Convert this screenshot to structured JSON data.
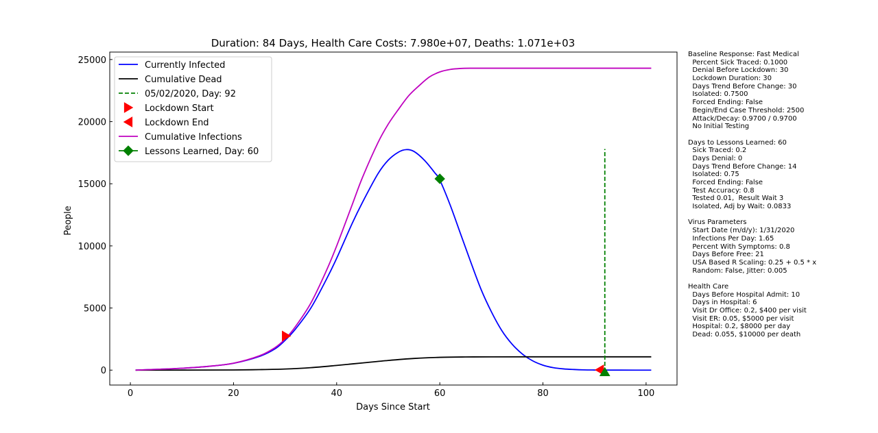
{
  "chart_data": {
    "type": "line",
    "title": "Duration: 84 Days,    Health Care Costs: 7.980e+07,    Deaths: 1.071e+03",
    "xlabel": "Days Since Start",
    "ylabel": "People",
    "xlim": [
      -4,
      106
    ],
    "ylim": [
      -1200,
      25600
    ],
    "xticks": [
      "0",
      "20",
      "40",
      "60",
      "80",
      "100"
    ],
    "xtick_values": [
      0,
      20,
      40,
      60,
      80,
      100
    ],
    "yticks": [
      "0",
      "5000",
      "10000",
      "15000",
      "20000",
      "25000"
    ],
    "ytick_values": [
      0,
      5000,
      10000,
      15000,
      20000,
      25000
    ],
    "grid": false,
    "legend_position": "upper-left",
    "series": [
      {
        "name": "Currently Infected",
        "color": "#0000ff",
        "x": [
          1,
          5,
          10,
          15,
          20,
          25,
          28,
          30,
          32,
          35,
          38,
          40,
          43,
          45,
          48,
          50,
          52,
          53.5,
          55,
          57,
          59,
          60,
          62,
          64,
          66,
          68,
          70,
          72,
          74,
          76,
          78,
          80,
          82,
          84,
          86,
          88,
          90,
          92,
          95,
          101
        ],
        "y": [
          0,
          60,
          150,
          300,
          550,
          1100,
          1700,
          2400,
          3300,
          5000,
          7300,
          9000,
          11800,
          13500,
          15800,
          16900,
          17550,
          17750,
          17600,
          16900,
          15900,
          15300,
          13300,
          11000,
          8700,
          6500,
          4700,
          3200,
          2100,
          1300,
          750,
          400,
          200,
          100,
          50,
          20,
          10,
          5,
          2,
          0
        ]
      },
      {
        "name": "Cumulative Dead",
        "color": "#000000",
        "x": [
          1,
          10,
          20,
          25,
          30,
          35,
          40,
          45,
          50,
          55,
          60,
          65,
          70,
          80,
          90,
          101
        ],
        "y": [
          0,
          2,
          15,
          40,
          90,
          200,
          380,
          580,
          780,
          940,
          1030,
          1060,
          1068,
          1071,
          1071,
          1071
        ]
      },
      {
        "name": "05/02/2020, Day: 92",
        "color": "#008000",
        "dashed": true,
        "x": [
          92,
          92
        ],
        "y": [
          -150,
          17800
        ]
      },
      {
        "name": "Lockdown Start",
        "color": "#ff0000",
        "marker": "triangle-right",
        "x": [
          30.2
        ],
        "y": [
          2750
        ]
      },
      {
        "name": "Lockdown End",
        "color": "#ff0000",
        "marker": "triangle-left",
        "x": [
          91
        ],
        "y": [
          20
        ]
      },
      {
        "name": "Cumulative Infections",
        "color": "#bf00bf",
        "x": [
          1,
          5,
          10,
          15,
          20,
          25,
          28,
          30,
          32,
          35,
          38,
          40,
          43,
          45,
          48,
          50,
          52,
          54,
          56,
          58,
          60,
          62,
          64,
          66,
          70,
          75,
          80,
          90,
          101
        ],
        "y": [
          0,
          60,
          150,
          300,
          560,
          1150,
          1800,
          2500,
          3500,
          5400,
          8000,
          10000,
          13300,
          15500,
          18300,
          19800,
          21000,
          22100,
          22900,
          23600,
          24000,
          24200,
          24280,
          24300,
          24300,
          24300,
          24300,
          24300,
          24300
        ]
      },
      {
        "name": "Lessons Learned, Day: 60",
        "color": "#008000",
        "marker": "diamond",
        "x": [
          60
        ],
        "y": [
          15400
        ]
      },
      {
        "name": "Day 92 end marker",
        "color": "#008000",
        "marker": "triangle-up",
        "legend": false,
        "x": [
          92
        ],
        "y": [
          -150
        ]
      }
    ]
  },
  "side_panel": {
    "lines": [
      "Baseline Response: Fast Medical",
      "  Percent Sick Traced: 0.1000",
      "  Denial Before Lockdown: 30",
      "  Lockdown Duration: 30",
      "  Days Trend Before Change: 30",
      "  Isolated: 0.7500",
      "  Forced Ending: False",
      "  Begin/End Case Threshold: 2500",
      "  Attack/Decay: 0.9700 / 0.9700",
      "  No Initial Testing",
      "",
      "Days to Lessons Learned: 60",
      "  Sick Traced: 0.2",
      "  Days Denial: 0",
      "  Days Trend Before Change: 14",
      "  Isolated: 0.75",
      "  Forced Ending: False",
      "  Test Accuracy: 0.8",
      "  Tested 0.01,  Result Wait 3",
      "  Isolated, Adj by Wait: 0.0833",
      "",
      "Virus Parameters",
      "  Start Date (m/d/y): 1/31/2020",
      "  Infections Per Day: 1.65",
      "  Percent With Symptoms: 0.8",
      "  Days Before Free: 21",
      "  USA Based R Scaling: 0.25 + 0.5 * x",
      "  Random: False, Jitter: 0.005",
      "",
      "Health Care",
      "  Days Before Hospital Admit: 10",
      "  Days in Hospital: 6",
      "  Visit Dr Office: 0.2, $400 per visit",
      "  Visit ER: 0.05, $5000 per visit",
      "  Hospital: 0.2, $8000 per day",
      "  Dead: 0.055, $10000 per death"
    ]
  }
}
